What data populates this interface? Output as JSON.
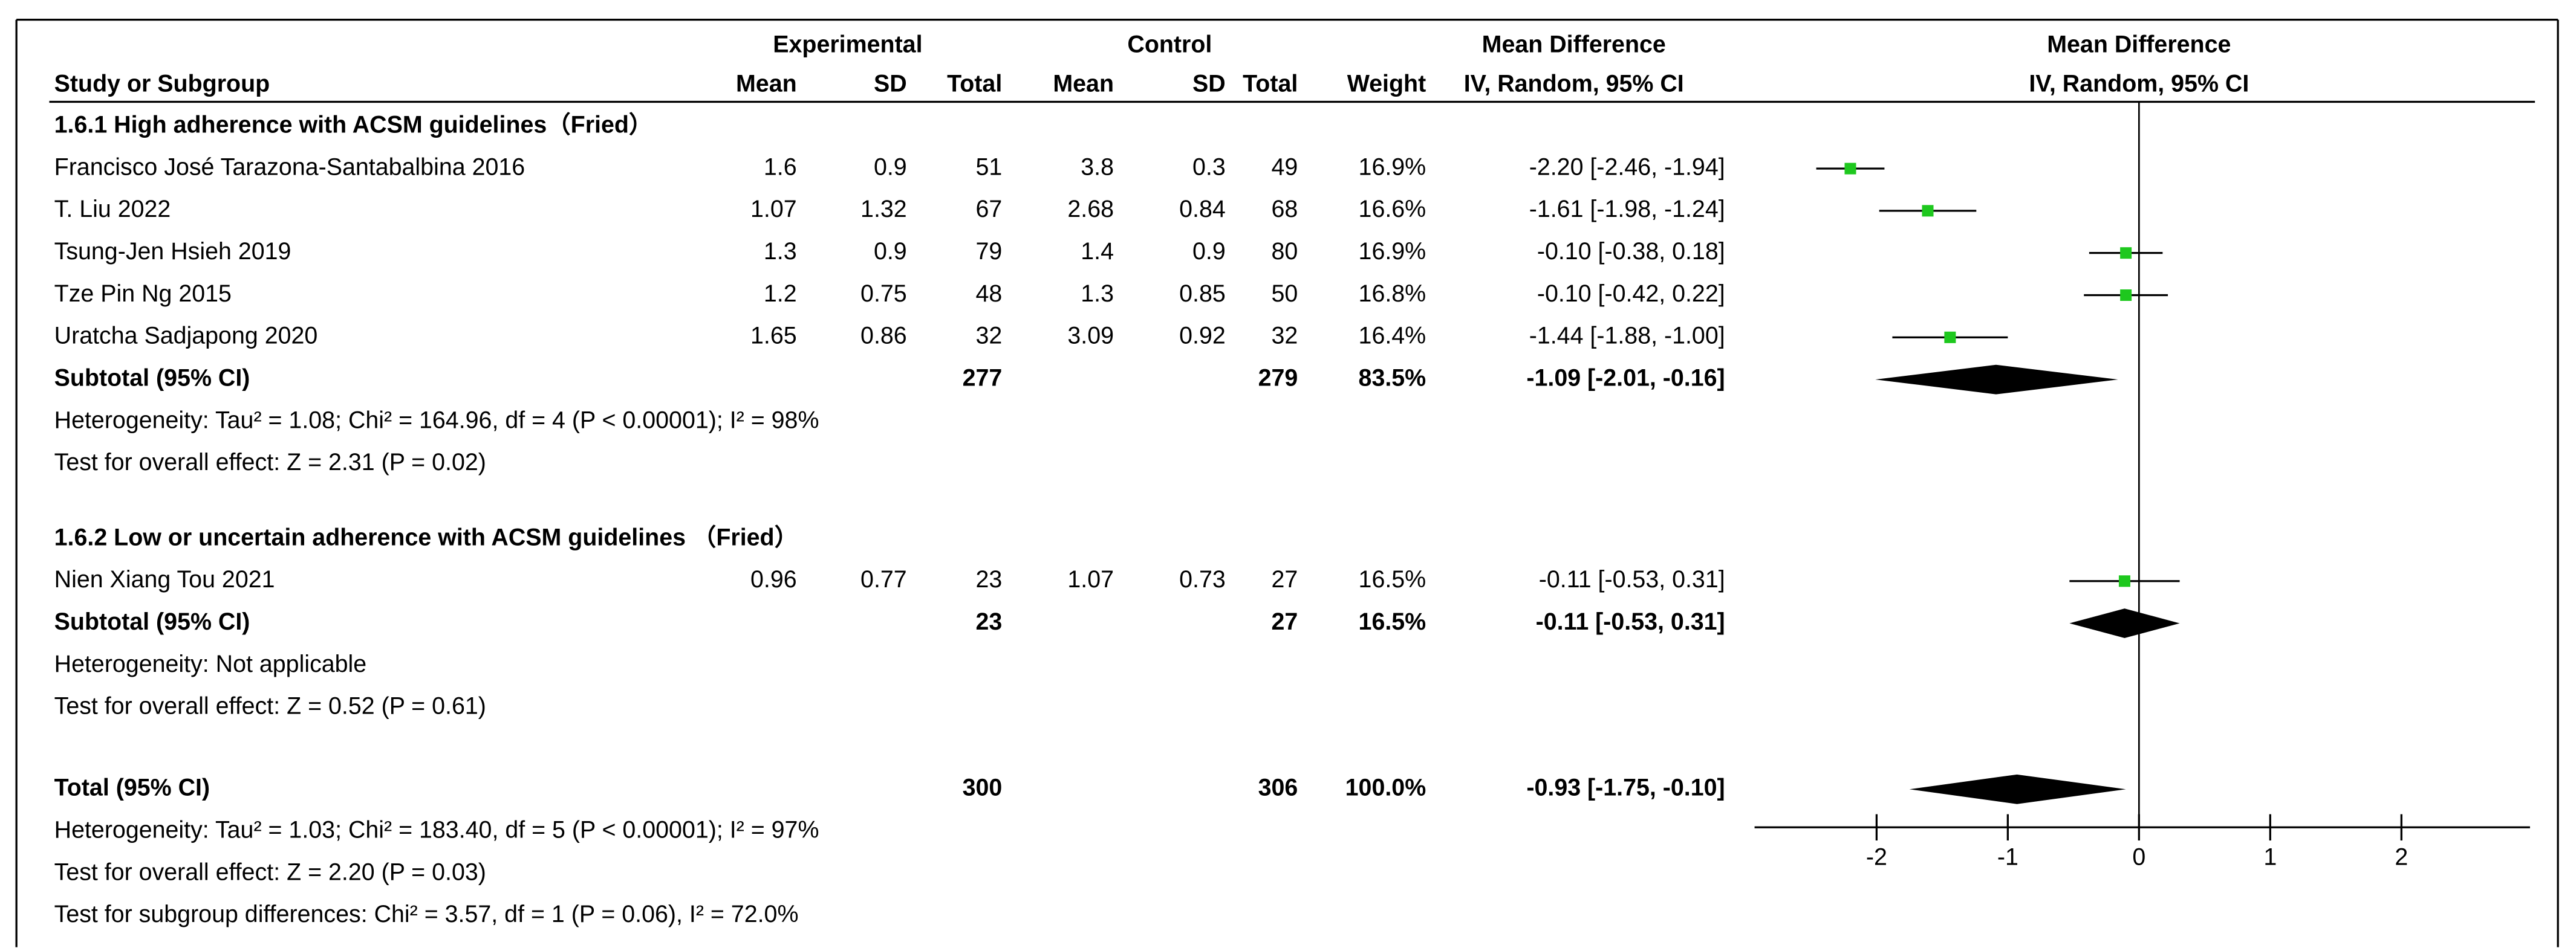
{
  "chart_data": {
    "type": "forest",
    "headers": {
      "experimental": "Experimental",
      "control": "Control",
      "md_table": "Mean Difference",
      "md_plot": "Mean Difference",
      "study": "Study or Subgroup",
      "columns": [
        "Mean",
        "SD",
        "Total",
        "Mean",
        "SD",
        "Total",
        "Weight",
        "IV, Random, 95% CI"
      ],
      "plot_method": "IV, Random, 95% CI"
    },
    "groups": [
      {
        "title": "1.6.1 High adherence with ACSM guidelines（Fried）",
        "studies": [
          {
            "name": "Francisco José Tarazona-Santabalbina 2016",
            "exp": [
              1.6,
              0.9,
              51
            ],
            "ctrl": [
              3.8,
              0.3,
              49
            ],
            "weight": "16.9%",
            "ci_text": "-2.20 [-2.46, -1.94]",
            "md": -2.2,
            "lo": -2.46,
            "hi": -1.94
          },
          {
            "name": "T. Liu 2022",
            "exp": [
              1.07,
              1.32,
              67
            ],
            "ctrl": [
              2.68,
              0.84,
              68
            ],
            "weight": "16.6%",
            "ci_text": "-1.61 [-1.98, -1.24]",
            "md": -1.61,
            "lo": -1.98,
            "hi": -1.24
          },
          {
            "name": "Tsung-Jen Hsieh 2019",
            "exp": [
              1.3,
              0.9,
              79
            ],
            "ctrl": [
              1.4,
              0.9,
              80
            ],
            "weight": "16.9%",
            "ci_text": "-0.10 [-0.38, 0.18]",
            "md": -0.1,
            "lo": -0.38,
            "hi": 0.18
          },
          {
            "name": "Tze Pin Ng 2015",
            "exp": [
              1.2,
              0.75,
              48
            ],
            "ctrl": [
              1.3,
              0.85,
              50
            ],
            "weight": "16.8%",
            "ci_text": "-0.10 [-0.42, 0.22]",
            "md": -0.1,
            "lo": -0.42,
            "hi": 0.22
          },
          {
            "name": "Uratcha Sadjapong 2020",
            "exp": [
              1.65,
              0.86,
              32
            ],
            "ctrl": [
              3.09,
              0.92,
              32
            ],
            "weight": "16.4%",
            "ci_text": "-1.44 [-1.88, -1.00]",
            "md": -1.44,
            "lo": -1.88,
            "hi": -1.0
          }
        ],
        "subtotal": {
          "label": "Subtotal (95% CI)",
          "exp_total": 277,
          "ctrl_total": 279,
          "weight": "83.5%",
          "ci_text": "-1.09 [-2.01, -0.16]",
          "md": -1.09,
          "lo": -2.01,
          "hi": -0.16
        },
        "heterogeneity": "Heterogeneity: Tau² = 1.08; Chi² = 164.96, df = 4 (P < 0.00001); I² = 98%",
        "overall": "Test for overall effect: Z = 2.31 (P = 0.02)"
      },
      {
        "title": "1.6.2 Low or uncertain adherence with ACSM guidelines （Fried）",
        "studies": [
          {
            "name": "Nien Xiang Tou 2021",
            "exp": [
              0.96,
              0.77,
              23
            ],
            "ctrl": [
              1.07,
              0.73,
              27
            ],
            "weight": "16.5%",
            "ci_text": "-0.11 [-0.53, 0.31]",
            "md": -0.11,
            "lo": -0.53,
            "hi": 0.31
          }
        ],
        "subtotal": {
          "label": "Subtotal (95% CI)",
          "exp_total": 23,
          "ctrl_total": 27,
          "weight": "16.5%",
          "ci_text": "-0.11 [-0.53, 0.31]",
          "md": -0.11,
          "lo": -0.53,
          "hi": 0.31
        },
        "heterogeneity": "Heterogeneity: Not applicable",
        "overall": "Test for overall effect: Z = 0.52 (P = 0.61)"
      }
    ],
    "total": {
      "label": "Total (95% CI)",
      "exp_total": 300,
      "ctrl_total": 306,
      "weight": "100.0%",
      "ci_text": "-0.93 [-1.75, -0.10]",
      "md": -0.93,
      "lo": -1.75,
      "hi": -0.1,
      "heterogeneity": "Heterogeneity: Tau² = 1.03; Chi² = 183.40, df = 5 (P < 0.00001); I² = 97%",
      "overall": "Test for overall effect: Z = 2.20 (P = 0.03)",
      "subgroup": "Test for subgroup differences: Chi² = 3.57, df = 1 (P = 0.06), I² = 72.0%"
    },
    "xlim": [
      -2.93,
      2.98
    ],
    "xticks": [
      -2,
      -1,
      0,
      1,
      2
    ],
    "square_color": "#1ec81e",
    "diamond_color": "#000000"
  }
}
